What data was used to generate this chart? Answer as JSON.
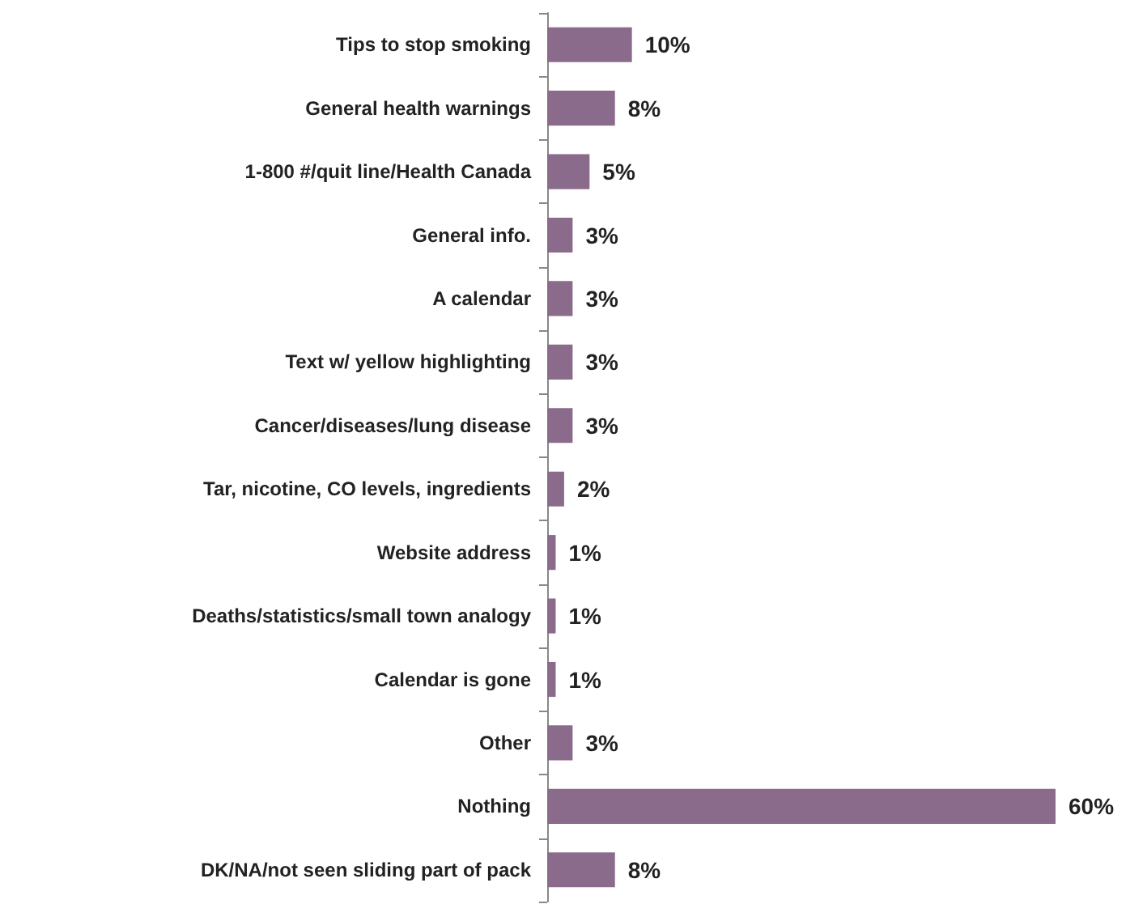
{
  "chart_data": {
    "type": "bar",
    "orientation": "horizontal",
    "categories": [
      "Tips to stop smoking",
      "General health warnings",
      "1-800 #/quit line/Health Canada",
      "General info.",
      "A calendar",
      "Text w/ yellow highlighting",
      "Cancer/diseases/lung disease",
      "Tar, nicotine, CO levels, ingredients",
      "Website address",
      "Deaths/statistics/small town analogy",
      "Calendar is gone",
      "Other",
      "Nothing",
      "DK/NA/not seen sliding part of pack"
    ],
    "values": [
      10,
      8,
      5,
      3,
      3,
      3,
      3,
      2,
      1,
      1,
      1,
      3,
      60,
      8
    ],
    "value_labels": [
      "10%",
      "8%",
      "5%",
      "3%",
      "3%",
      "3%",
      "3%",
      "2%",
      "1%",
      "1%",
      "1%",
      "3%",
      "60%",
      "8%"
    ],
    "color": "#8b6b8c"
  }
}
